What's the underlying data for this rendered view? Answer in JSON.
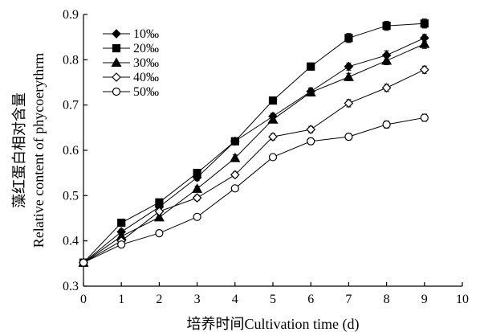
{
  "chart_data": {
    "type": "line",
    "title": "",
    "xlabel": "培养时间Cultivation time (d)",
    "ylabel_cn": "藻红蛋白相对含量",
    "ylabel_en": "Relative content of phycoerythrm",
    "xlim": [
      0,
      10
    ],
    "ylim": [
      0.3,
      0.9
    ],
    "x_ticks": [
      "0",
      "1",
      "2",
      "3",
      "4",
      "5",
      "6",
      "7",
      "8",
      "9",
      "10"
    ],
    "y_ticks": [
      "0.3",
      "0.4",
      "0.5",
      "0.6",
      "0.7",
      "0.8",
      "0.9"
    ],
    "grid": false,
    "legend_position": "top-left",
    "x": [
      0,
      1,
      2,
      3,
      4,
      5,
      6,
      7,
      8,
      9
    ],
    "series": [
      {
        "name": "10‰",
        "marker": "diamond-filled",
        "values": [
          0.352,
          0.42,
          0.475,
          0.54,
          0.62,
          0.675,
          0.73,
          0.785,
          0.81,
          0.848
        ],
        "errors": [
          0.004,
          0.006,
          0.006,
          0.007,
          0.007,
          0.007,
          0.008,
          0.008,
          0.01,
          0.008
        ]
      },
      {
        "name": "20‰",
        "marker": "square-filled",
        "values": [
          0.352,
          0.44,
          0.485,
          0.55,
          0.62,
          0.71,
          0.785,
          0.848,
          0.875,
          0.88
        ],
        "errors": [
          0.004,
          0.006,
          0.006,
          0.006,
          0.007,
          0.008,
          0.008,
          0.01,
          0.01,
          0.01
        ]
      },
      {
        "name": "30‰",
        "marker": "triangle-filled",
        "values": [
          0.352,
          0.41,
          0.452,
          0.515,
          0.583,
          0.668,
          0.728,
          0.762,
          0.798,
          0.835
        ],
        "errors": [
          0.004,
          0.006,
          0.006,
          0.006,
          0.007,
          0.007,
          0.008,
          0.008,
          0.009,
          0.01
        ]
      },
      {
        "name": "40‰",
        "marker": "diamond-open",
        "values": [
          0.352,
          0.4,
          0.465,
          0.495,
          0.546,
          0.63,
          0.646,
          0.704,
          0.738,
          0.778
        ],
        "errors": [
          0.004,
          0.005,
          0.005,
          0.006,
          0.006,
          0.007,
          0.007,
          0.008,
          0.008,
          0.008
        ]
      },
      {
        "name": "50‰",
        "marker": "circle-open",
        "values": [
          0.352,
          0.392,
          0.417,
          0.453,
          0.516,
          0.585,
          0.62,
          0.63,
          0.657,
          0.672
        ],
        "errors": [
          0.004,
          0.005,
          0.005,
          0.005,
          0.006,
          0.006,
          0.007,
          0.007,
          0.008,
          0.008
        ]
      }
    ]
  }
}
